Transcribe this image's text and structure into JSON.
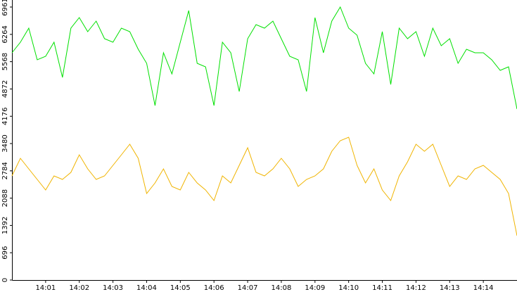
{
  "chart_data": {
    "type": "line",
    "x": [
      "14:00:00",
      "14:00:15",
      "14:00:30",
      "14:00:45",
      "14:01:00",
      "14:01:15",
      "14:01:30",
      "14:01:45",
      "14:02:00",
      "14:02:15",
      "14:02:30",
      "14:02:45",
      "14:03:00",
      "14:03:15",
      "14:03:30",
      "14:03:45",
      "14:04:00",
      "14:04:15",
      "14:04:30",
      "14:04:45",
      "14:05:00",
      "14:05:15",
      "14:05:30",
      "14:05:45",
      "14:06:00",
      "14:06:15",
      "14:06:30",
      "14:06:45",
      "14:07:00",
      "14:07:15",
      "14:07:30",
      "14:07:45",
      "14:08:00",
      "14:08:15",
      "14:08:30",
      "14:08:45",
      "14:09:00",
      "14:09:15",
      "14:09:30",
      "14:09:45",
      "14:10:00",
      "14:10:15",
      "14:10:30",
      "14:10:45",
      "14:11:00",
      "14:11:15",
      "14:11:30",
      "14:11:45",
      "14:12:00",
      "14:12:15",
      "14:12:30",
      "14:12:45",
      "14:13:00",
      "14:13:15",
      "14:13:30",
      "14:13:45",
      "14:14:00",
      "14:14:15",
      "14:14:30",
      "14:14:45",
      "14:15:00"
    ],
    "series": [
      {
        "color": "#00e000",
        "values": [
          5795,
          6064,
          6423,
          5615,
          5705,
          6064,
          5167,
          6423,
          6692,
          6333,
          6602,
          6153,
          6064,
          6423,
          6333,
          5884,
          5526,
          4449,
          5795,
          5256,
          6064,
          6871,
          5526,
          5436,
          4449,
          6064,
          5795,
          4808,
          6153,
          6512,
          6423,
          6602,
          6153,
          5705,
          5615,
          4808,
          6692,
          5795,
          6602,
          6961,
          6423,
          6243,
          5526,
          5256,
          6333,
          4987,
          6423,
          6153,
          6333,
          5705,
          6423,
          5974,
          6153,
          5526,
          5884,
          5795,
          5795,
          5615,
          5346,
          5436,
          4359
        ]
      },
      {
        "color": "#f0b400",
        "values": [
          2655,
          3104,
          2835,
          2565,
          2296,
          2655,
          2565,
          2745,
          3193,
          2835,
          2565,
          2655,
          2924,
          3193,
          3462,
          3104,
          2207,
          2476,
          2835,
          2386,
          2296,
          2745,
          2476,
          2296,
          2027,
          2655,
          2476,
          2924,
          3373,
          2745,
          2655,
          2835,
          3104,
          2835,
          2386,
          2565,
          2655,
          2835,
          3283,
          3552,
          3642,
          2924,
          2476,
          2835,
          2296,
          2027,
          2655,
          3014,
          3462,
          3283,
          3462,
          2924,
          2386,
          2655,
          2565,
          2835,
          2924,
          2745,
          2565,
          2207,
          1130
        ]
      }
    ],
    "xlim": [
      "14:00:00",
      "14:15:00"
    ],
    "xticks": [
      {
        "value": "14:01:00",
        "label": "14:01"
      },
      {
        "value": "14:02:00",
        "label": "14:02"
      },
      {
        "value": "14:03:00",
        "label": "14:03"
      },
      {
        "value": "14:04:00",
        "label": "14:04"
      },
      {
        "value": "14:05:00",
        "label": "14:05"
      },
      {
        "value": "14:06:00",
        "label": "14:06"
      },
      {
        "value": "14:07:00",
        "label": "14:07"
      },
      {
        "value": "14:08:00",
        "label": "14:08"
      },
      {
        "value": "14:09:00",
        "label": "14:09"
      },
      {
        "value": "14:10:00",
        "label": "14:10"
      },
      {
        "value": "14:11:00",
        "label": "14:11"
      },
      {
        "value": "14:12:00",
        "label": "14:12"
      },
      {
        "value": "14:13:00",
        "label": "14:13"
      },
      {
        "value": "14:14:00",
        "label": "14:14"
      }
    ],
    "ylim": [
      0,
      6961
    ],
    "yticks": [
      0,
      696,
      1392,
      2088,
      2784,
      3480,
      4176,
      4872,
      5568,
      6264,
      6961
    ],
    "grid": false
  }
}
